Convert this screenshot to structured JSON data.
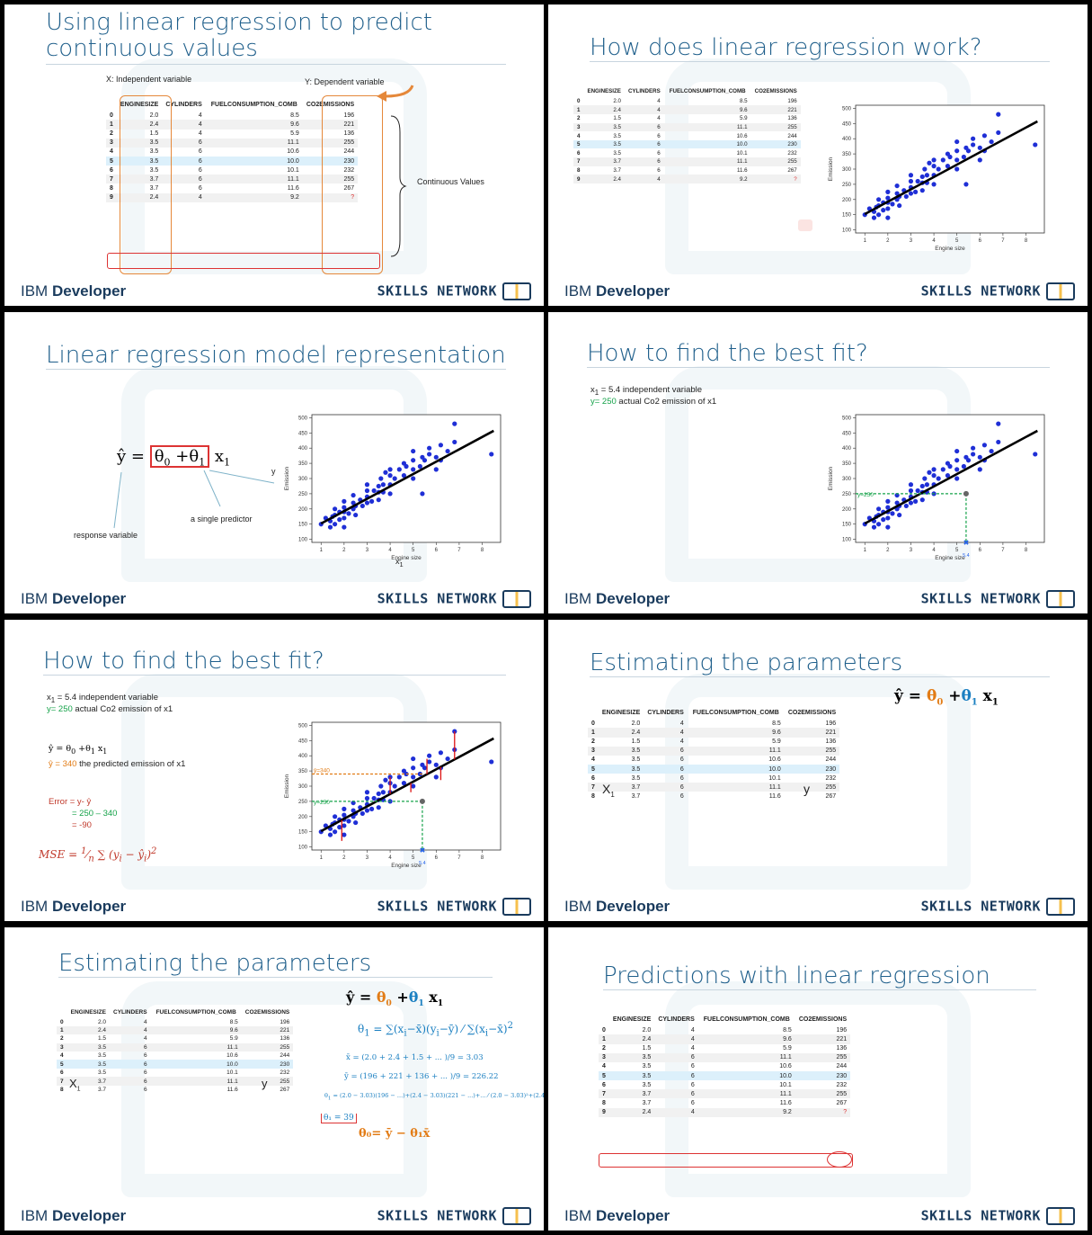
{
  "brand": {
    "ibm": "IBM",
    "developer": "Developer",
    "skills": "SKILLS NETWORK"
  },
  "slides": [
    {
      "title_line1": "Using linear regression to predict",
      "title_line2": "continuous values",
      "x_label": "X: Independent variable",
      "y_label": "Y: Dependent variable",
      "continuous": "Continuous Values"
    },
    {
      "title": "How does linear regression work?"
    },
    {
      "title": "Linear regression model representation",
      "response": "response variable",
      "single": "a single predictor",
      "y": "y",
      "x1": "x",
      "x1sub": "1"
    },
    {
      "title": "How to find the best fit?",
      "note1": "x",
      "note1b": "= 5.4  independent variable",
      "note2": "y= 250",
      "note2b": " actual Co2 emission of x1",
      "marker": "y=250",
      "xmark": "5.4"
    },
    {
      "title": "How to find the best fit?",
      "note1b": "= 5.4  independent variable",
      "note2": "y= 250",
      "note2b": " actual Co2 emission of x1",
      "yhat_val": "ŷ = 340",
      "yhat_desc": " the predicted emission of x1",
      "err1": "Error = y- ŷ",
      "err2": "= 250 – 340",
      "err3": "= -90",
      "mse": "MSE",
      "m340": "ŷ=340",
      "m250": "y=250"
    },
    {
      "title": "Estimating the parameters",
      "X1": "X",
      "y": "y"
    },
    {
      "title": "Estimating the parameters",
      "X1": "X",
      "y": "y",
      "xbar": "x̄ = (2.0 + 2.4 + 1.5 + ... )/9  =  3.03",
      "ybar": "ȳ = (196 + 221 + 136 + ... )/9 = 226.22",
      "t1val": "θ₁ = 39",
      "t0": "θ₀= ȳ − θ₁x̄"
    },
    {
      "title": "Predictions with linear regression"
    }
  ],
  "table": {
    "headers": [
      "ENGINESIZE",
      "CYLINDERS",
      "FUELCONSUMPTION_COMB",
      "CO2EMISSIONS"
    ],
    "rows": [
      [
        "0",
        "2.0",
        "4",
        "8.5",
        "196"
      ],
      [
        "1",
        "2.4",
        "4",
        "9.6",
        "221"
      ],
      [
        "2",
        "1.5",
        "4",
        "5.9",
        "136"
      ],
      [
        "3",
        "3.5",
        "6",
        "11.1",
        "255"
      ],
      [
        "4",
        "3.5",
        "6",
        "10.6",
        "244"
      ],
      [
        "5",
        "3.5",
        "6",
        "10.0",
        "230"
      ],
      [
        "6",
        "3.5",
        "6",
        "10.1",
        "232"
      ],
      [
        "7",
        "3.7",
        "6",
        "11.1",
        "255"
      ],
      [
        "8",
        "3.7",
        "6",
        "11.6",
        "267"
      ],
      [
        "9",
        "2.4",
        "4",
        "9.2",
        "?"
      ]
    ]
  },
  "chart_data": {
    "type": "scatter",
    "xlabel": "Engine size",
    "ylabel": "Emission",
    "xlim": [
      0.6,
      8.8
    ],
    "ylim": [
      90,
      510
    ],
    "xticks": [
      "1",
      "2",
      "3",
      "4",
      "5",
      "6",
      "7",
      "8"
    ],
    "yticks": [
      "100",
      "150",
      "200",
      "250",
      "300",
      "350",
      "400",
      "450",
      "500"
    ],
    "fit_line": {
      "x": [
        1,
        8.5
      ],
      "y": [
        152,
        457
      ]
    },
    "points": [
      [
        1,
        150
      ],
      [
        1.2,
        170
      ],
      [
        1.4,
        140
      ],
      [
        1.4,
        160
      ],
      [
        1.5,
        175
      ],
      [
        1.6,
        150
      ],
      [
        1.6,
        180
      ],
      [
        1.6,
        200
      ],
      [
        1.8,
        165
      ],
      [
        1.8,
        190
      ],
      [
        2,
        140
      ],
      [
        2,
        170
      ],
      [
        2,
        190
      ],
      [
        2,
        205
      ],
      [
        2,
        225
      ],
      [
        2.2,
        185
      ],
      [
        2.4,
        200
      ],
      [
        2.4,
        220
      ],
      [
        2.4,
        245
      ],
      [
        2.5,
        180
      ],
      [
        2.5,
        210
      ],
      [
        2.7,
        230
      ],
      [
        2.8,
        210
      ],
      [
        3,
        220
      ],
      [
        3,
        240
      ],
      [
        3,
        260
      ],
      [
        3,
        280
      ],
      [
        3.2,
        225
      ],
      [
        3.3,
        260
      ],
      [
        3.5,
        230
      ],
      [
        3.5,
        255
      ],
      [
        3.5,
        275
      ],
      [
        3.6,
        300
      ],
      [
        3.7,
        255
      ],
      [
        3.7,
        280
      ],
      [
        3.8,
        320
      ],
      [
        4,
        250
      ],
      [
        4,
        280
      ],
      [
        4,
        310
      ],
      [
        4,
        330
      ],
      [
        4.2,
        300
      ],
      [
        4.4,
        330
      ],
      [
        4.6,
        310
      ],
      [
        4.6,
        350
      ],
      [
        4.7,
        340
      ],
      [
        5,
        300
      ],
      [
        5,
        330
      ],
      [
        5,
        360
      ],
      [
        5,
        390
      ],
      [
        5.3,
        340
      ],
      [
        5.4,
        250
      ],
      [
        5.4,
        370
      ],
      [
        5.5,
        360
      ],
      [
        5.7,
        380
      ],
      [
        5.7,
        400
      ],
      [
        6,
        330
      ],
      [
        6,
        370
      ],
      [
        6.2,
        360
      ],
      [
        6.2,
        410
      ],
      [
        6.5,
        390
      ],
      [
        6.8,
        420
      ],
      [
        6.8,
        480
      ],
      [
        8.4,
        380
      ]
    ]
  }
}
